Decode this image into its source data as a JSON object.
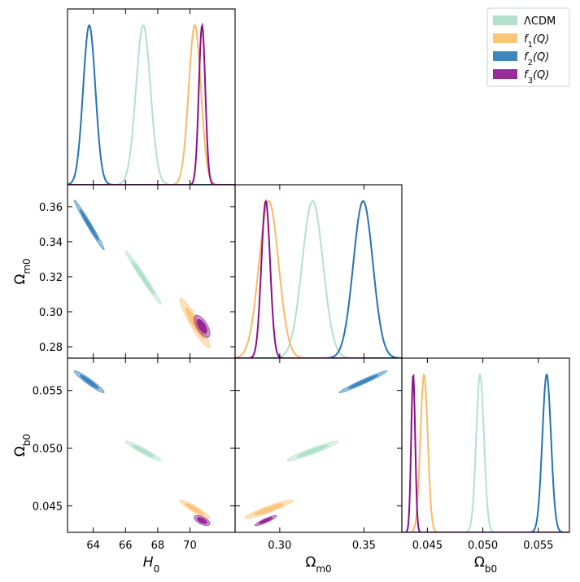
{
  "chart_data": {
    "type": "corner",
    "parameters": [
      {
        "key": "H0",
        "label_main": "H",
        "label_sub": "0",
        "italic": true,
        "range": [
          62.4,
          72.8
        ],
        "ticks": [
          64,
          66,
          68,
          70
        ],
        "tick_labels": [
          "64",
          "66",
          "68",
          "70"
        ]
      },
      {
        "key": "Om",
        "label_main": "Ω",
        "label_sub": "m0",
        "italic": false,
        "range": [
          0.2735,
          0.3725
        ],
        "ticks": [
          0.28,
          0.3,
          0.32,
          0.34,
          0.36
        ],
        "tick_labels": [
          "0.28",
          "0.30",
          "0.32",
          "0.34",
          "0.36"
        ]
      },
      {
        "key": "Ob",
        "label_main": "Ω",
        "label_sub": "b0",
        "italic": false,
        "range": [
          0.0427,
          0.0578
        ],
        "ticks": [
          0.045,
          0.05,
          0.055
        ],
        "tick_labels": [
          "0.045",
          "0.050",
          "0.055"
        ]
      }
    ],
    "x_tick_visible": {
      "H0": [
        64,
        66,
        68,
        70
      ],
      "Om": [
        0.3,
        0.35
      ],
      "Ob": [
        0.045,
        0.05,
        0.055
      ]
    },
    "x_tick_labels": {
      "H0": [
        "64",
        "66",
        "68",
        "70"
      ],
      "Om": [
        "0.30",
        "0.35"
      ],
      "Ob": [
        "0.045",
        "0.050",
        "0.055"
      ]
    },
    "y_tick_visible": {
      "Om": [
        0.28,
        0.3,
        0.32,
        0.34,
        0.36
      ],
      "Ob": [
        0.045,
        0.05,
        0.055
      ]
    },
    "y_tick_labels": {
      "Om": [
        "0.28",
        "0.30",
        "0.32",
        "0.34",
        "0.36"
      ],
      "Ob": [
        "0.045",
        "0.050",
        "0.055"
      ]
    },
    "models": [
      {
        "name": "ΛCDM",
        "legend_main": "ΛCDM",
        "legend_sub": "",
        "legend_tail": "",
        "color": "#a8ddc5",
        "line": "#b2e1cc",
        "mean": {
          "H0": 67.1,
          "Om": 0.3195,
          "Ob": 0.04975
        },
        "sigma": {
          "H0": 0.45,
          "Om": 0.0062,
          "Ob": 0.00035
        },
        "corr": {
          "H0_Om": -0.985,
          "H0_Ob": -0.95,
          "Om_Ob": 0.95
        }
      },
      {
        "name": "f1(Q)",
        "legend_main": "f",
        "legend_sub": "1",
        "legend_tail": "(Q)",
        "color": "#fdbe6e",
        "line": "#fbb966",
        "mean": {
          "H0": 70.3,
          "Om": 0.2935,
          "Ob": 0.0447
        },
        "sigma": {
          "H0": 0.38,
          "Om": 0.0058,
          "Ob": 0.00033
        },
        "corr": {
          "H0_Om": -0.93,
          "H0_Ob": -0.93,
          "Om_Ob": 0.93
        }
      },
      {
        "name": "f2(Q)",
        "legend_main": "f",
        "legend_sub": "2",
        "legend_tail": "(Q)",
        "color": "#2a79b7",
        "line": "#2473b2",
        "mean": {
          "H0": 63.75,
          "Om": 0.3495,
          "Ob": 0.05575
        },
        "sigma": {
          "H0": 0.38,
          "Om": 0.0058,
          "Ob": 0.00039
        },
        "corr": {
          "H0_Om": -0.985,
          "H0_Ob": -0.95,
          "Om_Ob": 0.975
        }
      },
      {
        "name": "f3(Q)",
        "legend_main": "f",
        "legend_sub": "3",
        "legend_tail": "(Q)",
        "color": "#8e158f",
        "line": "#8a0f8a",
        "mean": {
          "H0": 70.75,
          "Om": 0.2917,
          "Ob": 0.04372
        },
        "sigma": {
          "H0": 0.2,
          "Om": 0.0026,
          "Ob": 0.00018
        },
        "corr": {
          "H0_Om": -0.65,
          "H0_Ob": -0.6,
          "Om_Ob": 0.9
        }
      }
    ],
    "legend_position": "top-right",
    "grid": false
  }
}
